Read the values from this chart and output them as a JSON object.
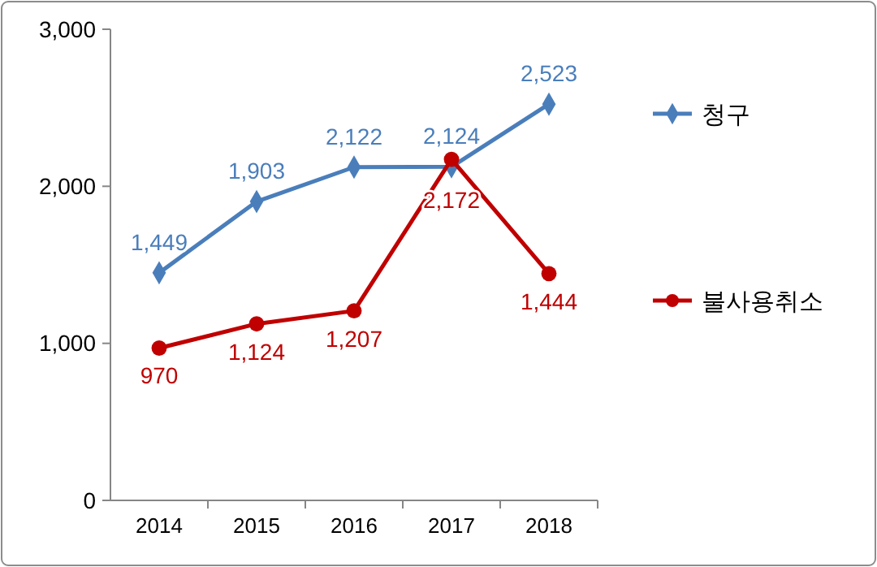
{
  "chart_data": {
    "type": "line",
    "categories": [
      "2014",
      "2015",
      "2016",
      "2017",
      "2018"
    ],
    "series": [
      {
        "name": "청구",
        "color": "#4a7ebb",
        "marker": "diamond",
        "values": [
          1449,
          1903,
          2122,
          2124,
          2523
        ],
        "value_labels": [
          "1,449",
          "1,903",
          "2,122",
          "2,124",
          "2,523"
        ]
      },
      {
        "name": "불사용취소",
        "color": "#c00000",
        "marker": "circle",
        "values": [
          970,
          1124,
          1207,
          2172,
          1444
        ],
        "value_labels": [
          "970",
          "1,124",
          "1,207",
          "2,172",
          "1,444"
        ]
      }
    ],
    "ylim": [
      0,
      3000
    ],
    "yticks": [
      {
        "value": 0,
        "label": "0"
      },
      {
        "value": 1000,
        "label": "1,000"
      },
      {
        "value": 2000,
        "label": "2,000"
      },
      {
        "value": 3000,
        "label": "3,000"
      }
    ],
    "legend": "right",
    "grid": false
  }
}
